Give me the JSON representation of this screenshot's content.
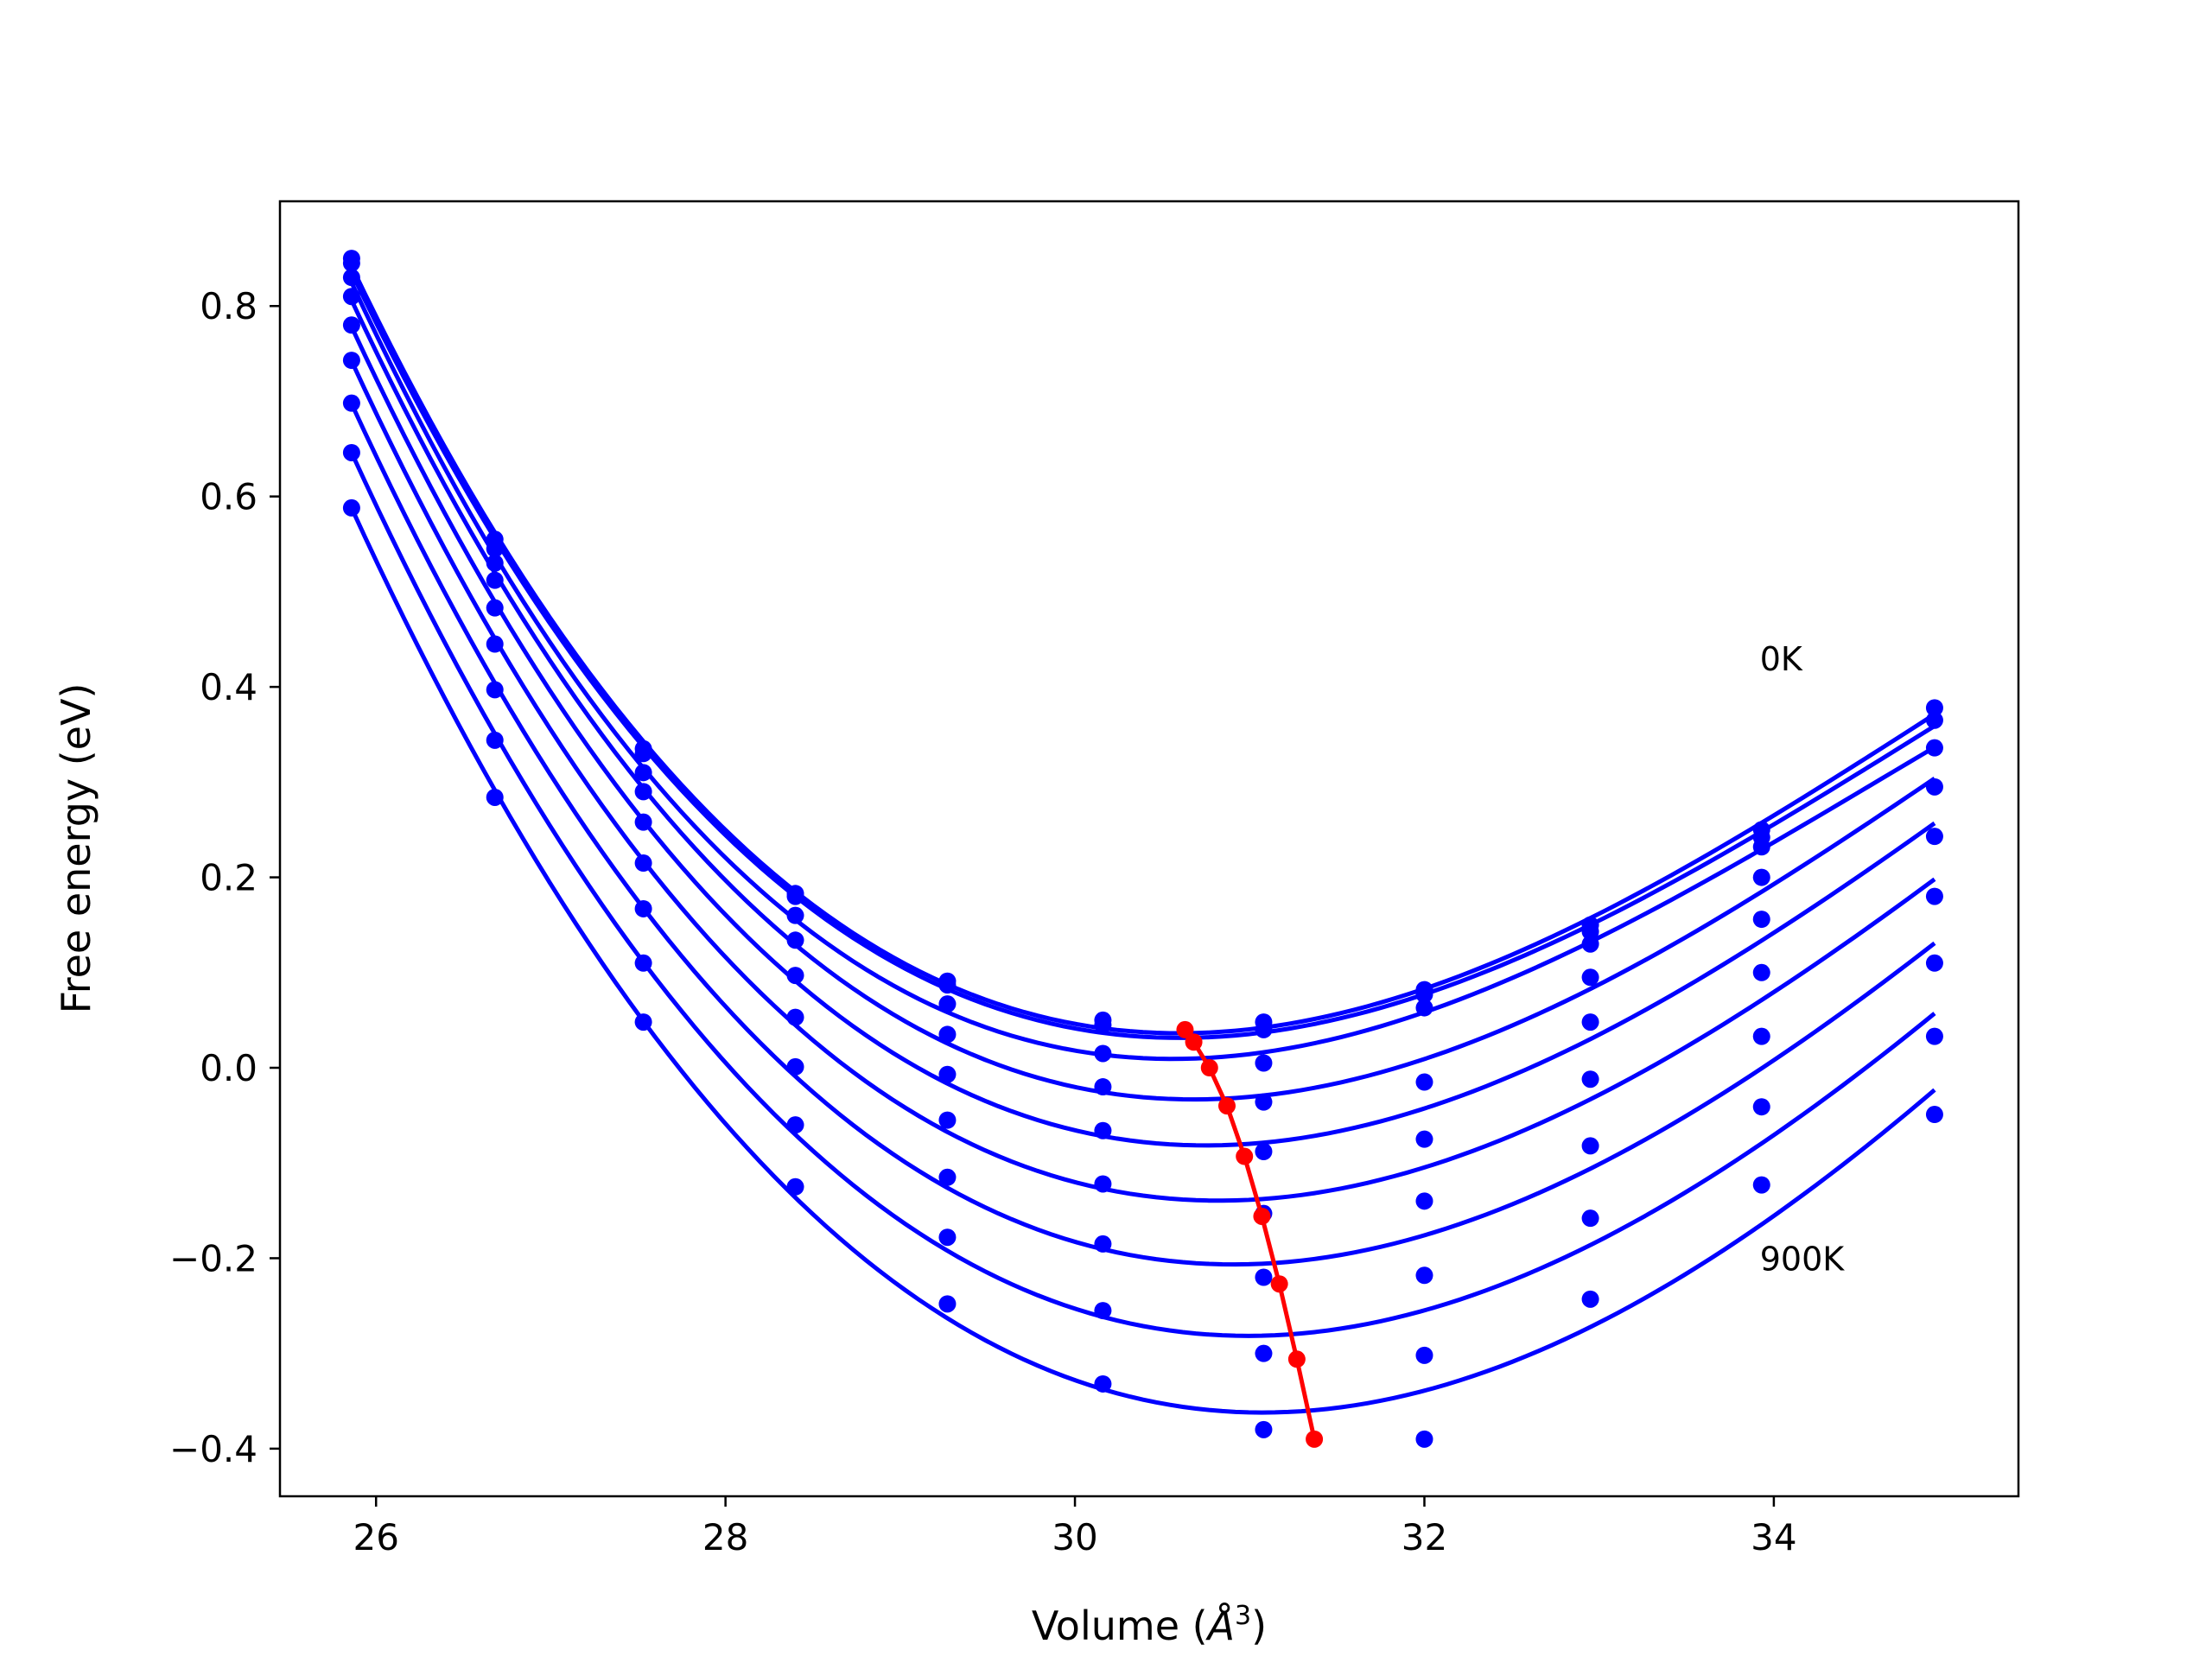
{
  "chart_data": {
    "type": "line",
    "title": "",
    "xlabel_text": "Volume (",
    "xlabel_unit": "Å",
    "xlabel_exp": "3",
    "xlabel_close": ")",
    "ylabel": "Free energy (eV)",
    "xlim": [
      25.45,
      35.4
    ],
    "ylim": [
      -0.45,
      0.91
    ],
    "xticks": [
      26,
      28,
      30,
      32,
      34
    ],
    "yticks": [
      -0.4,
      -0.2,
      0.0,
      0.2,
      0.4,
      0.6,
      0.8
    ],
    "x": [
      25.86,
      26.68,
      27.53,
      28.4,
      29.27,
      30.16,
      31.08,
      32.0,
      32.95,
      33.93,
      34.92
    ],
    "series": [
      {
        "values": [
          0.85,
          0.555,
          0.335,
          0.183,
          0.091,
          0.05,
          0.048,
          0.082,
          0.15,
          0.25,
          0.378
        ]
      },
      {
        "values": [
          0.845,
          0.545,
          0.33,
          0.18,
          0.087,
          0.045,
          0.04,
          0.077,
          0.143,
          0.242,
          0.365
        ]
      },
      {
        "values": [
          0.83,
          0.53,
          0.31,
          0.16,
          0.067,
          0.015,
          0.005,
          0.063,
          0.13,
          0.232,
          0.336
        ]
      },
      {
        "values": [
          0.81,
          0.512,
          0.29,
          0.134,
          0.035,
          -0.02,
          -0.036,
          -0.015,
          0.095,
          0.2,
          0.295
        ]
      },
      {
        "values": [
          0.78,
          0.483,
          0.258,
          0.097,
          -0.007,
          -0.066,
          -0.088,
          -0.075,
          0.048,
          0.156,
          0.243
        ]
      },
      {
        "values": [
          0.743,
          0.445,
          0.215,
          0.053,
          -0.055,
          -0.122,
          -0.153,
          -0.14,
          -0.012,
          0.1,
          0.18
        ]
      },
      {
        "values": [
          0.698,
          0.397,
          0.167,
          0.001,
          -0.115,
          -0.185,
          -0.22,
          -0.218,
          -0.082,
          0.033,
          0.11
        ]
      },
      {
        "values": [
          0.646,
          0.344,
          0.11,
          -0.06,
          -0.178,
          -0.255,
          -0.3,
          -0.302,
          -0.158,
          -0.041,
          0.033
        ]
      },
      {
        "values": [
          0.588,
          0.284,
          0.048,
          -0.125,
          -0.248,
          -0.332,
          -0.38,
          -0.39,
          -0.243,
          -0.123,
          -0.049
        ]
      }
    ],
    "minimum_path": {
      "x": [
        30.63,
        30.68,
        30.77,
        30.87,
        30.97,
        31.07,
        31.17,
        31.27,
        31.37
      ],
      "y": [
        0.04,
        0.027,
        0.0,
        -0.04,
        -0.093,
        -0.156,
        -0.227,
        -0.306,
        -0.39
      ]
    },
    "annotations": [
      {
        "text": "0K",
        "x": 33.93,
        "y": 0.43
      },
      {
        "text": "900K",
        "x": 33.93,
        "y": -0.2
      }
    ],
    "colors": {
      "series": "#0000ff",
      "minimum_path": "#ff0000",
      "axes": "#000000"
    },
    "grid": false
  }
}
